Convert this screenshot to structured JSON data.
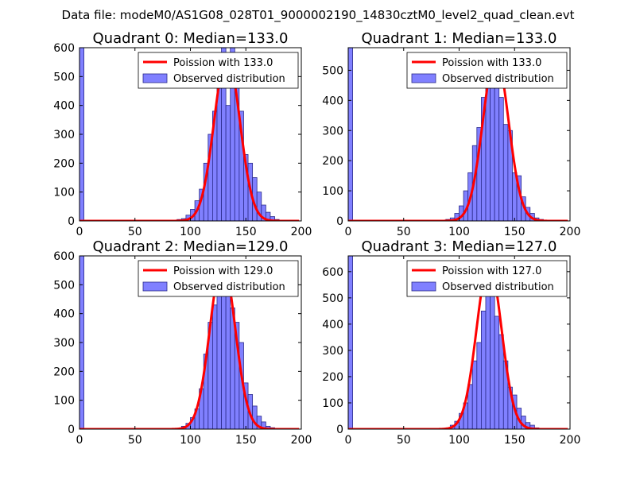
{
  "figure": {
    "suptitle": "Data file: modeM0/AS1G08_028T01_9000002190_14830cztM0_level2_quad_clean.evt"
  },
  "colors": {
    "bar_fill": "#8080ff",
    "bar_edge": "#2a2a8a",
    "curve": "#ff0000",
    "axis": "#000000"
  },
  "chart_data": [
    {
      "type": "bar",
      "title": "Quadrant 0: Median=133.0",
      "median": 133.0,
      "xlim": [
        0,
        200
      ],
      "ylim": [
        0,
        600
      ],
      "xticks": [
        0,
        50,
        100,
        150,
        200
      ],
      "yticks": [
        0,
        100,
        200,
        300,
        400,
        500,
        600
      ],
      "legend": {
        "location": "top-right",
        "entries": [
          "Poission with 133.0",
          "Observed distribution"
        ]
      },
      "bin_width": 4,
      "bins": [
        [
          0,
          600
        ],
        [
          88,
          5
        ],
        [
          92,
          8
        ],
        [
          96,
          20
        ],
        [
          100,
          40
        ],
        [
          104,
          70
        ],
        [
          108,
          110
        ],
        [
          112,
          200
        ],
        [
          116,
          300
        ],
        [
          120,
          380
        ],
        [
          124,
          480
        ],
        [
          128,
          600
        ],
        [
          132,
          400
        ],
        [
          136,
          600
        ],
        [
          140,
          500
        ],
        [
          144,
          380
        ],
        [
          148,
          230
        ],
        [
          152,
          200
        ],
        [
          156,
          150
        ],
        [
          160,
          100
        ],
        [
          164,
          55
        ],
        [
          168,
          30
        ],
        [
          172,
          15
        ],
        [
          176,
          5
        ]
      ],
      "curve": {
        "name": "Poission with 133.0",
        "mu": 133.0,
        "peak": 575
      }
    },
    {
      "type": "bar",
      "title": "Quadrant 1: Median=133.0",
      "median": 133.0,
      "xlim": [
        0,
        200
      ],
      "ylim": [
        0,
        575
      ],
      "xticks": [
        0,
        50,
        100,
        150,
        200
      ],
      "yticks": [
        0,
        100,
        200,
        300,
        400,
        500
      ],
      "legend": {
        "location": "top-right",
        "entries": [
          "Poission with 133.0",
          "Observed distribution"
        ]
      },
      "bin_width": 4,
      "bins": [
        [
          0,
          575
        ],
        [
          88,
          5
        ],
        [
          92,
          10
        ],
        [
          96,
          25
        ],
        [
          100,
          50
        ],
        [
          104,
          100
        ],
        [
          108,
          160
        ],
        [
          112,
          250
        ],
        [
          116,
          310
        ],
        [
          120,
          410
        ],
        [
          124,
          470
        ],
        [
          128,
          550
        ],
        [
          132,
          470
        ],
        [
          136,
          410
        ],
        [
          140,
          320
        ],
        [
          144,
          300
        ],
        [
          148,
          160
        ],
        [
          152,
          150
        ],
        [
          156,
          80
        ],
        [
          160,
          45
        ],
        [
          164,
          25
        ],
        [
          168,
          10
        ],
        [
          172,
          5
        ]
      ],
      "curve": {
        "name": "Poission with 133.0",
        "mu": 133.0,
        "peak": 550
      }
    },
    {
      "type": "bar",
      "title": "Quadrant 2: Median=129.0",
      "median": 129.0,
      "xlim": [
        0,
        200
      ],
      "ylim": [
        0,
        600
      ],
      "xticks": [
        0,
        50,
        100,
        150,
        200
      ],
      "yticks": [
        0,
        100,
        200,
        300,
        400,
        500,
        600
      ],
      "legend": {
        "location": "top-right",
        "entries": [
          "Poission with 129.0",
          "Observed distribution"
        ]
      },
      "bin_width": 4,
      "bins": [
        [
          0,
          600
        ],
        [
          92,
          10
        ],
        [
          96,
          20
        ],
        [
          100,
          40
        ],
        [
          104,
          70
        ],
        [
          108,
          140
        ],
        [
          112,
          260
        ],
        [
          116,
          370
        ],
        [
          120,
          430
        ],
        [
          124,
          540
        ],
        [
          128,
          580
        ],
        [
          132,
          560
        ],
        [
          136,
          420
        ],
        [
          140,
          370
        ],
        [
          144,
          300
        ],
        [
          148,
          160
        ],
        [
          152,
          120
        ],
        [
          156,
          80
        ],
        [
          160,
          45
        ],
        [
          164,
          25
        ],
        [
          168,
          10
        ],
        [
          172,
          5
        ]
      ],
      "curve": {
        "name": "Poission with 129.0",
        "mu": 129.0,
        "peak": 580
      }
    },
    {
      "type": "bar",
      "title": "Quadrant 3: Median=127.0",
      "median": 127.0,
      "xlim": [
        0,
        200
      ],
      "ylim": [
        0,
        660
      ],
      "xticks": [
        0,
        50,
        100,
        150,
        200
      ],
      "yticks": [
        0,
        100,
        200,
        300,
        400,
        500,
        600
      ],
      "legend": {
        "location": "top-right",
        "entries": [
          "Poission with 127.0",
          "Observed distribution"
        ]
      },
      "bin_width": 4,
      "bins": [
        [
          0,
          660
        ],
        [
          88,
          5
        ],
        [
          92,
          15
        ],
        [
          96,
          30
        ],
        [
          100,
          60
        ],
        [
          104,
          100
        ],
        [
          108,
          170
        ],
        [
          112,
          260
        ],
        [
          116,
          330
        ],
        [
          120,
          450
        ],
        [
          124,
          580
        ],
        [
          128,
          560
        ],
        [
          132,
          430
        ],
        [
          136,
          360
        ],
        [
          140,
          260
        ],
        [
          144,
          160
        ],
        [
          148,
          130
        ],
        [
          152,
          80
        ],
        [
          156,
          50
        ],
        [
          160,
          25
        ],
        [
          164,
          15
        ],
        [
          168,
          5
        ]
      ],
      "curve": {
        "name": "Poission with 127.0",
        "mu": 127.0,
        "peak": 630
      }
    }
  ]
}
